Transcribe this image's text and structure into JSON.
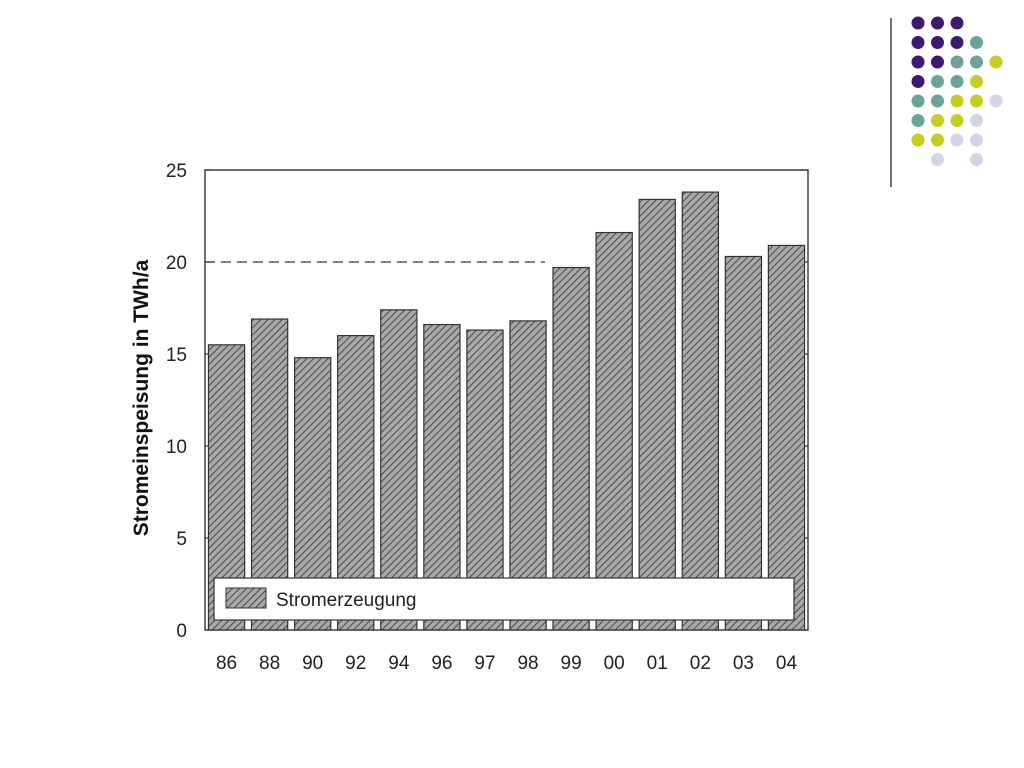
{
  "decor": {
    "colors": [
      "#3d1a6e",
      "#6aa39c",
      "#c7cc22",
      "#d4d4e8"
    ],
    "dot_grid": [
      [
        0,
        0,
        0,
        -1,
        -1
      ],
      [
        0,
        0,
        0,
        1,
        -1
      ],
      [
        0,
        0,
        1,
        1,
        2
      ],
      [
        0,
        1,
        1,
        2,
        -1
      ],
      [
        1,
        1,
        2,
        2,
        3
      ],
      [
        1,
        2,
        2,
        3,
        -1
      ],
      [
        2,
        2,
        3,
        3,
        -1
      ],
      [
        -1,
        3,
        -1,
        3,
        -1
      ]
    ]
  },
  "chart_data": {
    "type": "bar",
    "categories": [
      "86",
      "88",
      "90",
      "92",
      "94",
      "96",
      "97",
      "98",
      "99",
      "00",
      "01",
      "02",
      "03",
      "04"
    ],
    "series": [
      {
        "name": "Stromerzeugung",
        "values": [
          15.5,
          16.9,
          14.8,
          16.0,
          17.4,
          16.6,
          16.3,
          16.8,
          19.7,
          21.6,
          23.4,
          23.8,
          20.3,
          20.9
        ]
      }
    ],
    "ylabel": "Stromeinspeisung in TWh/a",
    "xlabel": "",
    "ylim": [
      0,
      25
    ],
    "yticks": [
      0,
      5,
      10,
      15,
      20,
      25
    ],
    "legend": {
      "label": "Stromerzeugung",
      "placement": "bottom"
    },
    "reference_line": 20,
    "bar_fill": "#9a9a9a",
    "hatch_color": "#3a3a3a"
  }
}
